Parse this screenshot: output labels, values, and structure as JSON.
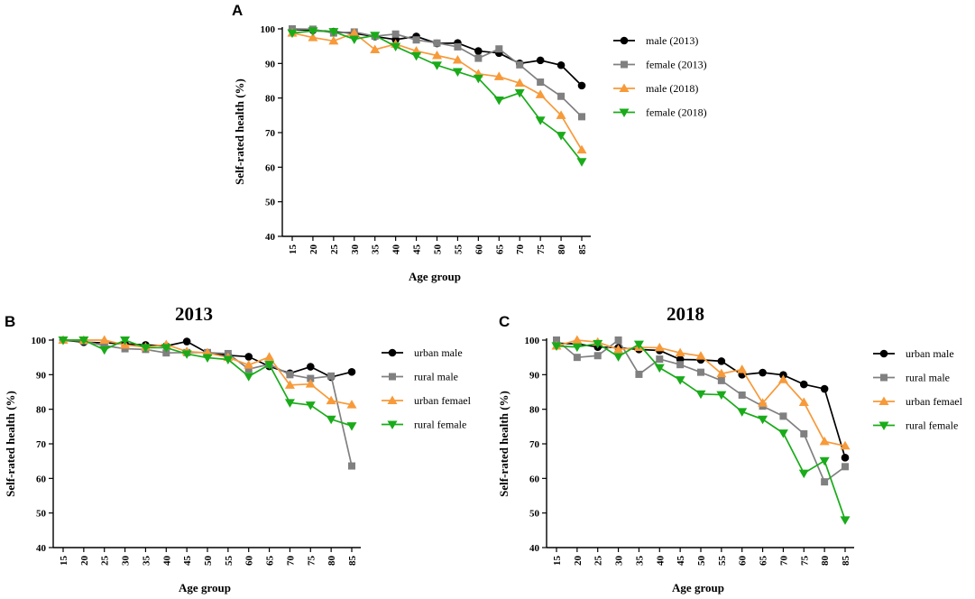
{
  "chart_data": [
    {
      "type": "line",
      "panel_label": "A",
      "title": "",
      "xlabel": "Age group",
      "ylabel": "Self-rated health (%)",
      "ylim": [
        40,
        100
      ],
      "yticks": [
        "40",
        "50",
        "60",
        "70",
        "80",
        "90",
        "100"
      ],
      "categories": [
        "15",
        "20",
        "25",
        "30",
        "35",
        "40",
        "45",
        "50",
        "55",
        "60",
        "65",
        "70",
        "75",
        "80",
        "85"
      ],
      "series": [
        {
          "name": "male (2013)",
          "color": "#000000",
          "marker": "circle",
          "values": [
            99.8,
            99.6,
            99.2,
            98.7,
            97.8,
            96.9,
            97.8,
            95.8,
            95.9,
            93.6,
            93.0,
            90.0,
            90.9,
            89.5,
            83.6
          ]
        },
        {
          "name": "female (2013)",
          "color": "#808080",
          "marker": "square",
          "values": [
            100,
            99.9,
            98.8,
            99.1,
            97.9,
            98.5,
            96.8,
            95.9,
            94.8,
            91.5,
            94.2,
            89.6,
            84.6,
            80.5,
            74.6
          ]
        },
        {
          "name": "male (2018)",
          "color": "#F79A3A",
          "marker": "triangle-up",
          "values": [
            98.8,
            97.5,
            96.5,
            98.8,
            94.0,
            95.6,
            93.6,
            92.3,
            91.0,
            87.0,
            86.2,
            84.3,
            81.0,
            75.0,
            65.0
          ]
        },
        {
          "name": "female (2018)",
          "color": "#1AAB1A",
          "marker": "triangle-down",
          "values": [
            98.8,
            99.4,
            99.2,
            97.0,
            98.1,
            94.9,
            92.2,
            89.5,
            87.6,
            85.7,
            79.4,
            81.5,
            73.6,
            69.2,
            61.6
          ]
        }
      ]
    },
    {
      "type": "line",
      "panel_label": "B",
      "title": "2013",
      "xlabel": "Age group",
      "ylabel": "Self-rated health (%)",
      "ylim": [
        40,
        100
      ],
      "yticks": [
        "40",
        "50",
        "60",
        "70",
        "80",
        "90",
        "100"
      ],
      "categories": [
        "15",
        "20",
        "25",
        "30",
        "35",
        "40",
        "45",
        "50",
        "55",
        "60",
        "65",
        "70",
        "75",
        "80",
        "85"
      ],
      "series": [
        {
          "name": "urban male",
          "color": "#000000",
          "marker": "circle",
          "values": [
            100,
            99.4,
            99.2,
            98.9,
            98.6,
            98.3,
            99.6,
            96.3,
            95.6,
            95.2,
            92.4,
            90.4,
            92.3,
            89.3,
            90.8
          ]
        },
        {
          "name": "rural male",
          "color": "#808080",
          "marker": "square",
          "values": [
            100,
            99.7,
            98.4,
            97.5,
            97.3,
            96.3,
            96.4,
            96.4,
            96.1,
            91.6,
            93.0,
            90.0,
            88.9,
            89.6,
            63.6
          ]
        },
        {
          "name": "urban femael",
          "color": "#F79A3A",
          "marker": "triangle-up",
          "values": [
            100,
            100,
            100,
            98.6,
            98.0,
            98.7,
            96.7,
            96.3,
            95.0,
            92.8,
            95.1,
            87.0,
            87.3,
            82.5,
            81.3
          ]
        },
        {
          "name": "rural female",
          "color": "#1AAB1A",
          "marker": "triangle-down",
          "values": [
            100,
            100,
            97.2,
            100,
            97.8,
            97.8,
            96.0,
            94.9,
            94.4,
            89.5,
            92.9,
            81.9,
            81.2,
            77.1,
            75.2
          ]
        }
      ]
    },
    {
      "type": "line",
      "panel_label": "C",
      "title": "2018",
      "xlabel": "Age group",
      "ylabel": "Self-rated health (%)",
      "ylim": [
        40,
        100
      ],
      "yticks": [
        "40",
        "50",
        "60",
        "70",
        "80",
        "90",
        "100"
      ],
      "categories": [
        "15",
        "20",
        "25",
        "30",
        "35",
        "40",
        "45",
        "50",
        "55",
        "60",
        "65",
        "70",
        "75",
        "80",
        "85"
      ],
      "series": [
        {
          "name": "urban male",
          "color": "#000000",
          "marker": "circle",
          "values": [
            99.1,
            98.9,
            98.0,
            97.8,
            97.3,
            97.0,
            94.4,
            94.3,
            93.9,
            90.0,
            90.6,
            89.9,
            87.2,
            85.9,
            66.0
          ]
        },
        {
          "name": "rural male",
          "color": "#808080",
          "marker": "square",
          "values": [
            100,
            95.0,
            95.5,
            100,
            90.1,
            94.5,
            92.9,
            90.7,
            88.3,
            84.1,
            80.9,
            78.0,
            72.9,
            59.0,
            63.4
          ]
        },
        {
          "name": "urban femael",
          "color": "#F79A3A",
          "marker": "triangle-up",
          "values": [
            98.3,
            100,
            99.4,
            97.3,
            97.9,
            97.8,
            96.3,
            95.4,
            90.3,
            91.5,
            81.8,
            88.6,
            82.0,
            70.7,
            69.4
          ]
        },
        {
          "name": "rural female",
          "color": "#1AAB1A",
          "marker": "triangle-down",
          "values": [
            98.3,
            98.0,
            99.0,
            95.2,
            98.8,
            92.0,
            88.5,
            84.4,
            84.2,
            79.3,
            77.1,
            73.1,
            61.5,
            65.1,
            48.0
          ]
        }
      ]
    }
  ]
}
